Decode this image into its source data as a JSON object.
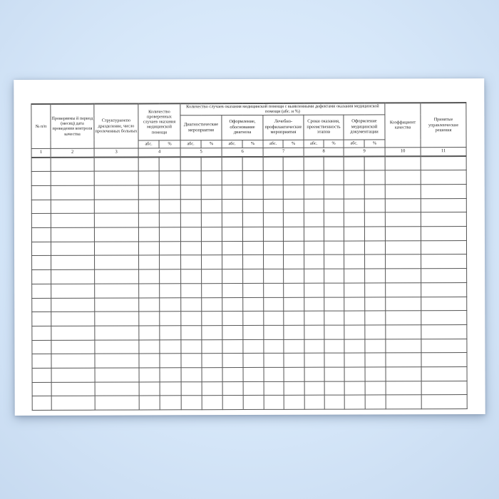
{
  "background": {
    "center_color": "#e4f1fe",
    "edge_color": "#c7daf0"
  },
  "paper": {
    "color": "#ffffff"
  },
  "table": {
    "line_color": "#555555",
    "group_header": "Количество случаев оказания медицинской помощи с выявленными дефектами оказания медицинской помощи (абс. и %)",
    "abs_label": "абс.",
    "pct_label": "%",
    "columns": [
      {
        "num": "1",
        "label": "№ п/п",
        "sub": false
      },
      {
        "num": "2",
        "label": "Проверяемы й период (месяц) дата проведения контроля качества",
        "sub": false
      },
      {
        "num": "3",
        "label": "Структурноепо дразделение, число пролеченных больных",
        "sub": false
      },
      {
        "num": "4",
        "label": "Количество проверенных случаев оказания медицинской помощи",
        "sub": true
      },
      {
        "num": "5",
        "label": "Диагностические мероприятия",
        "sub": true
      },
      {
        "num": "6",
        "label": "Оформление, обоснование диагноза",
        "sub": true
      },
      {
        "num": "7",
        "label": "Лечебно-профилактические мероприятия",
        "sub": true
      },
      {
        "num": "8",
        "label": "Сроки оказания, преемственность этапов",
        "sub": true
      },
      {
        "num": "9",
        "label": "Оформление медицинской документации",
        "sub": true
      },
      {
        "num": "10",
        "label": "Коэффициент качества",
        "sub": false
      },
      {
        "num": "11",
        "label": "Принятые управленческие решения",
        "sub": false
      }
    ],
    "body_rows": 18
  }
}
